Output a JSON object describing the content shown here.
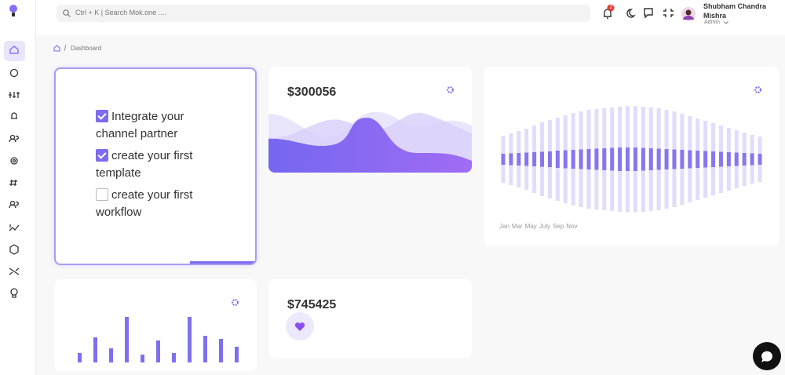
{
  "topbar": {
    "search_placeholder": "Ctrl + K | Search Mok.one ....",
    "notification_count": 2,
    "user": {
      "name": "Shubham Chandra Mishra",
      "role": "Admin"
    }
  },
  "breadcrumb": [
    "Dashboard"
  ],
  "checklist": [
    {
      "text": "Integrate your channel partner",
      "checked": true
    },
    {
      "text": "create your first template",
      "checked": true
    },
    {
      "text": "create your first workflow",
      "checked": false
    }
  ],
  "stat_cards": [
    {
      "value": "$300056"
    },
    {
      "value": "$745425"
    }
  ],
  "wave_chart": {
    "months": [
      "Jan",
      "Mar",
      "May",
      "July",
      "Sep",
      "Nov"
    ],
    "outer": [
      60,
      66,
      72,
      78,
      86,
      94,
      100,
      106,
      112,
      118,
      122,
      126,
      128,
      130,
      132,
      134,
      135,
      135,
      134,
      132,
      130,
      126,
      122,
      116,
      110,
      104,
      98,
      92,
      86,
      80,
      74,
      68,
      62,
      58
    ],
    "inner": [
      14,
      15,
      16,
      17,
      18,
      19,
      20,
      22,
      23,
      24,
      25,
      26,
      27,
      28,
      29,
      30,
      30,
      30,
      29,
      28,
      27,
      26,
      25,
      24,
      23,
      22,
      21,
      20,
      19,
      18,
      17,
      16,
      15,
      14
    ]
  },
  "bar_chart": {
    "values": [
      12,
      32,
      18,
      58,
      10,
      28,
      12,
      58,
      34,
      30,
      20
    ]
  }
}
